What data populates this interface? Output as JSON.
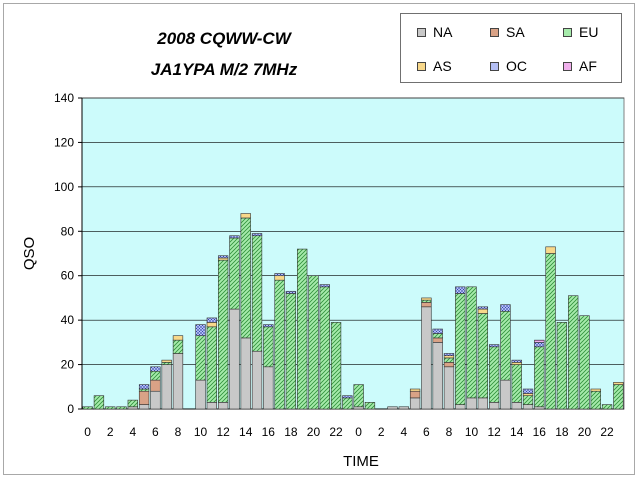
{
  "chart_data": {
    "type": "bar",
    "stacked": true,
    "title": "2008 CQWW-CW",
    "subtitle": "JA1YPA  M/2  7MHz",
    "xlabel": "TIME",
    "ylabel": "QSO",
    "ylim": [
      0,
      140
    ],
    "yticks": [
      0,
      20,
      40,
      60,
      80,
      100,
      120,
      140
    ],
    "legend_position": "top-right",
    "categories": [
      "0",
      "1",
      "2",
      "3",
      "4",
      "5",
      "6",
      "7",
      "8",
      "9",
      "10",
      "11",
      "12",
      "13",
      "14",
      "15",
      "16",
      "17",
      "18",
      "19",
      "20",
      "21",
      "22",
      "23",
      "0",
      "1",
      "2",
      "3",
      "4",
      "5",
      "6",
      "7",
      "8",
      "9",
      "10",
      "11",
      "12",
      "13",
      "14",
      "15",
      "16",
      "17",
      "18",
      "19",
      "20",
      "21",
      "22",
      "23"
    ],
    "xtick_labels": [
      "0",
      "2",
      "4",
      "6",
      "8",
      "10",
      "12",
      "14",
      "16",
      "18",
      "20",
      "22",
      "0",
      "2",
      "4",
      "6",
      "8",
      "10",
      "12",
      "14",
      "16",
      "18",
      "20",
      "22"
    ],
    "series": [
      {
        "name": "NA",
        "color": "#c8c8c8",
        "values": [
          0,
          0,
          0,
          0,
          1,
          2,
          8,
          20,
          25,
          0,
          13,
          3,
          3,
          45,
          32,
          26,
          19,
          0,
          0,
          0,
          0,
          0,
          0,
          0,
          1,
          0,
          0,
          1,
          1,
          5,
          46,
          30,
          19,
          2,
          5,
          5,
          3,
          13,
          3,
          2,
          1,
          0,
          0,
          0,
          0,
          0,
          0,
          0
        ]
      },
      {
        "name": "SA",
        "color": "#d9a286",
        "values": [
          0,
          0,
          0,
          0,
          0,
          6,
          5,
          0,
          0,
          0,
          0,
          0,
          0,
          0,
          0,
          0,
          0,
          0,
          0,
          0,
          0,
          0,
          0,
          0,
          0,
          0,
          0,
          0,
          0,
          3,
          2,
          2,
          2,
          0,
          0,
          0,
          0,
          0,
          0,
          0,
          0,
          0,
          0,
          0,
          0,
          0,
          0,
          0
        ]
      },
      {
        "name": "EU",
        "color": "#a6ebab",
        "values": [
          1,
          6,
          1,
          1,
          3,
          1,
          4,
          1,
          6,
          0,
          20,
          34,
          64,
          32,
          54,
          52,
          18,
          58,
          52,
          72,
          60,
          55,
          39,
          5,
          10,
          3,
          0,
          0,
          0,
          0,
          1,
          2,
          2,
          50,
          50,
          38,
          25,
          31,
          17,
          4,
          27,
          70,
          39,
          51,
          42,
          8,
          2,
          11
        ]
      },
      {
        "name": "AS",
        "color": "#f8d88a",
        "values": [
          0,
          0,
          0,
          0,
          0,
          0,
          0,
          1,
          2,
          0,
          0,
          2,
          1,
          0,
          2,
          0,
          0,
          2,
          0,
          0,
          0,
          0,
          0,
          0,
          0,
          0,
          0,
          0,
          0,
          1,
          1,
          0,
          1,
          0,
          0,
          2,
          0,
          0,
          1,
          1,
          0,
          3,
          0,
          0,
          0,
          1,
          0,
          1
        ]
      },
      {
        "name": "OC",
        "color": "#b4bff5",
        "values": [
          0,
          0,
          0,
          0,
          0,
          2,
          2,
          0,
          0,
          0,
          5,
          2,
          1,
          1,
          0,
          1,
          1,
          1,
          1,
          0,
          0,
          1,
          0,
          1,
          0,
          0,
          0,
          0,
          0,
          0,
          0,
          2,
          1,
          3,
          0,
          1,
          1,
          3,
          1,
          2,
          2,
          0,
          0,
          0,
          0,
          0,
          0,
          0
        ]
      },
      {
        "name": "AF",
        "color": "#f0b0ec",
        "values": [
          0,
          0,
          0,
          0,
          0,
          0,
          0,
          0,
          0,
          0,
          0,
          0,
          0,
          0,
          0,
          0,
          0,
          0,
          0,
          0,
          0,
          0,
          0,
          0,
          0,
          0,
          0,
          0,
          0,
          0,
          0,
          0,
          0,
          0,
          0,
          0,
          0,
          0,
          0,
          0,
          1,
          0,
          0,
          0,
          0,
          0,
          0,
          0
        ]
      }
    ],
    "plot_background": "#ccfbfb"
  }
}
